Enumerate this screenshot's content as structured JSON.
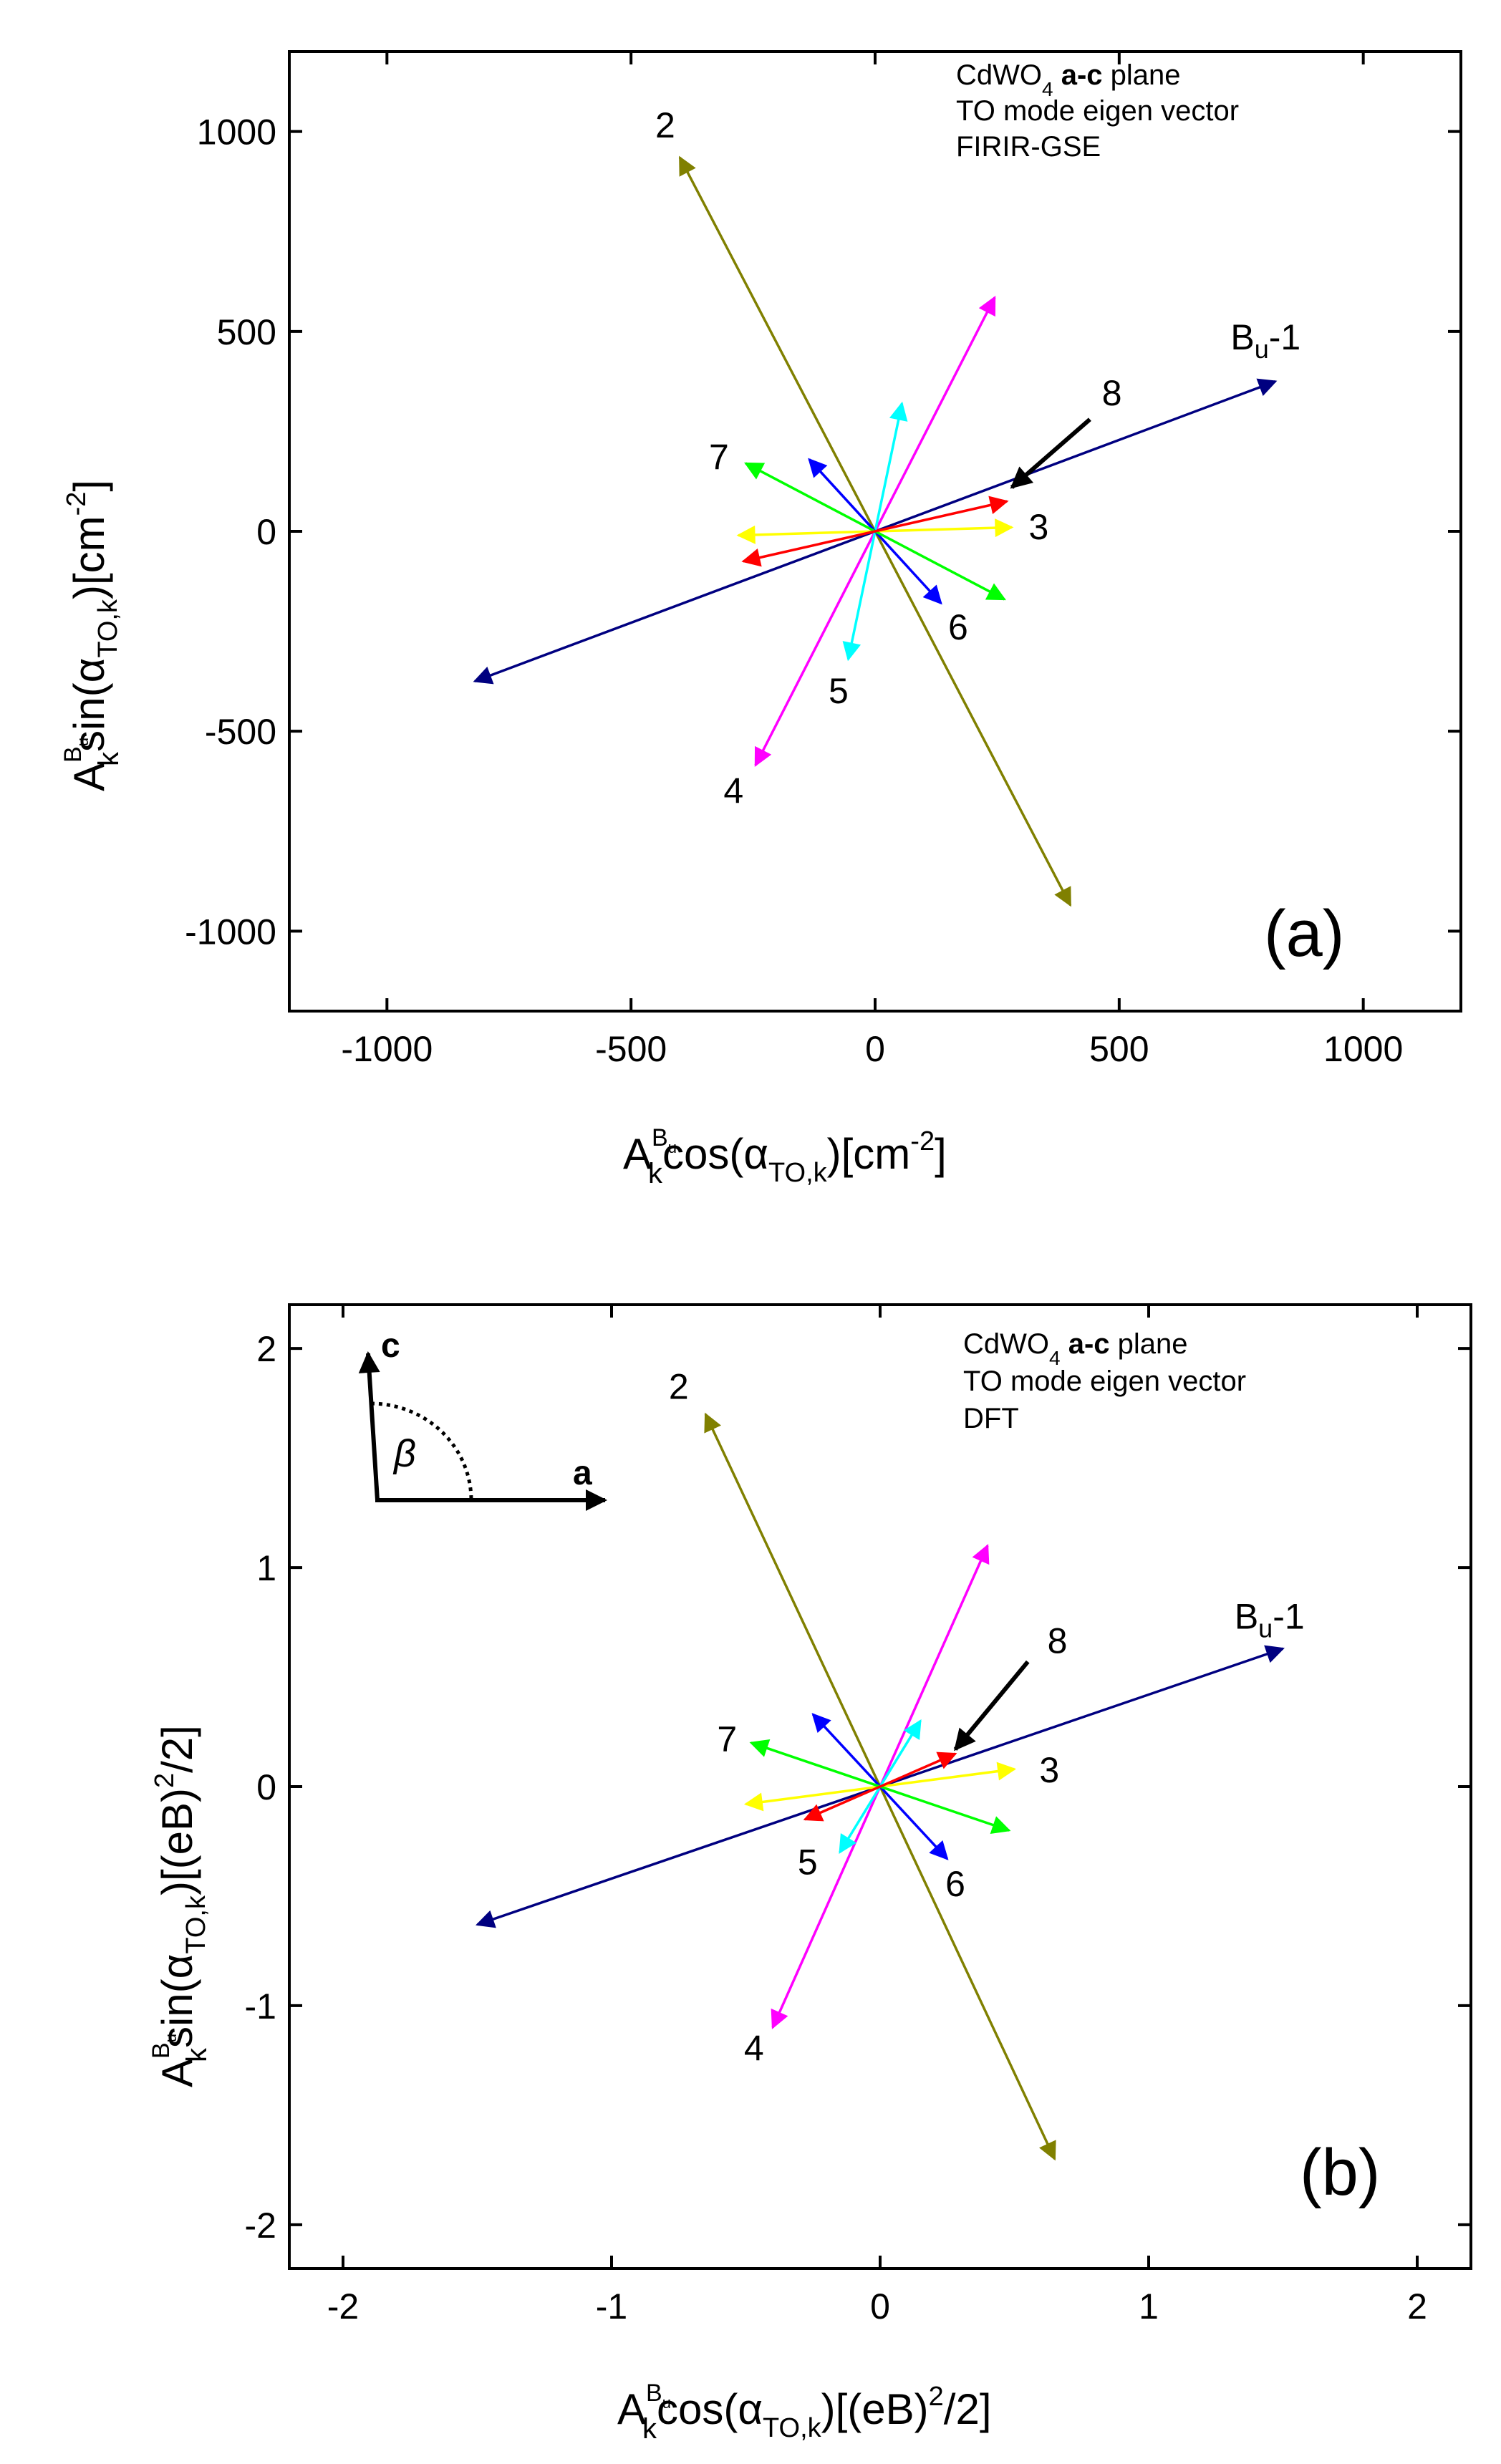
{
  "chart_data": [
    {
      "type": "vector",
      "panel": "(a)",
      "annotation": [
        "CdWO",
        "4",
        "a-c",
        "plane",
        "TO mode eigen vector",
        "FIRIR-GSE"
      ],
      "xlabel": {
        "A": "A",
        "sup": "B",
        "supsub": "u",
        "k": "k",
        "func": "cos(",
        "alpha": "α",
        "alpha_sub": "TO,k",
        "unit": ")[cm",
        "unit_exp": "-2",
        "close": "]"
      },
      "ylabel": {
        "A": "A",
        "sup": "B",
        "supsub": "u",
        "k": "k",
        "func": "sin(",
        "alpha": "α",
        "alpha_sub": "TO,k",
        "unit": ")[cm",
        "unit_exp": "-2",
        "close": "]"
      },
      "xlim": [
        -1200,
        1200
      ],
      "ylim": [
        -1200,
        1200
      ],
      "xticks": [
        -1000,
        -500,
        0,
        500,
        1000
      ],
      "yticks": [
        -1000,
        -500,
        0,
        500,
        1000
      ],
      "xtick_labels": [
        "-1000",
        "-500",
        "0",
        "500",
        "1000"
      ],
      "ytick_labels": [
        "-1000",
        "-500",
        "0",
        "500",
        "1000"
      ],
      "vectors": [
        {
          "mode": "1",
          "label": "B",
          "label_sub": "u",
          "label_suffix": "-1",
          "color": "#000080",
          "dx": 820,
          "dy": 375,
          "two_sided": true,
          "label_at": [
            800,
            455
          ]
        },
        {
          "mode": "2",
          "label": "2",
          "color": "#808000",
          "dx": -400,
          "dy": 935,
          "two_sided": true,
          "label_at": [
            -430,
            985
          ]
        },
        {
          "mode": "3",
          "label": "3",
          "color": "#FFFF00",
          "dx": 280,
          "dy": 10,
          "two_sided": true,
          "label_at": [
            335,
            -20
          ]
        },
        {
          "mode": "4",
          "label": "4",
          "color": "#FF00FF",
          "dx": -245,
          "dy": -585,
          "two_sided": true,
          "label_at": [
            -290,
            -680
          ]
        },
        {
          "mode": "5",
          "label": "5",
          "color": "#00FFFF",
          "dx": -55,
          "dy": -320,
          "two_sided": true,
          "label_at": [
            -75,
            -430
          ]
        },
        {
          "mode": "6",
          "label": "6",
          "color": "#0000FF",
          "dx": 135,
          "dy": -180,
          "two_sided": true,
          "label_at": [
            170,
            -270
          ]
        },
        {
          "mode": "7",
          "label": "7",
          "color": "#00FF00",
          "dx": -265,
          "dy": 170,
          "two_sided": true,
          "label_at": [
            -320,
            155
          ]
        },
        {
          "mode": "8",
          "label": "8",
          "color": "#FF0000",
          "dx": 270,
          "dy": 75,
          "two_sided": true,
          "label_at": [
            485,
            315
          ]
        }
      ],
      "pointer": {
        "from": [
          440,
          280
        ],
        "to": [
          280,
          110
        ],
        "color": "#000000"
      }
    },
    {
      "type": "vector",
      "panel": "(b)",
      "annotation": [
        "CdWO",
        "4",
        "a-c",
        "plane",
        "TO mode eigen vector",
        "DFT"
      ],
      "xlabel": {
        "A": "A",
        "sup": "B",
        "supsub": "u",
        "k": "k",
        "func": "cos(",
        "alpha": "α",
        "alpha_sub": "TO,k",
        "unit": ")[(eB)",
        "unit_exp": "2",
        "close": "/2]"
      },
      "ylabel": {
        "A": "A",
        "sup": "B",
        "supsub": "u",
        "k": "k",
        "func": "sin(",
        "alpha": "α",
        "alpha_sub": "TO,k",
        "unit": ")[(eB)",
        "unit_exp": "2",
        "close": "/2]"
      },
      "xlim": [
        -2.2,
        2.2
      ],
      "ylim": [
        -2.2,
        2.2
      ],
      "xticks": [
        -2,
        -1,
        0,
        1,
        2
      ],
      "yticks": [
        -2,
        -1,
        0,
        1,
        2
      ],
      "xtick_labels": [
        "-2",
        "-1",
        "0",
        "1",
        "2"
      ],
      "ytick_labels": [
        "-2",
        "-1",
        "0",
        "1",
        "2"
      ],
      "vectors": [
        {
          "mode": "1",
          "label": "B",
          "label_sub": "u",
          "label_suffix": "-1",
          "color": "#000080",
          "dx": 1.5,
          "dy": 0.63,
          "two_sided": true,
          "label_at": [
            1.45,
            0.72
          ]
        },
        {
          "mode": "2",
          "label": "2",
          "color": "#808000",
          "dx": -0.65,
          "dy": 1.7,
          "two_sided": true,
          "label_at": [
            -0.75,
            1.77
          ]
        },
        {
          "mode": "3",
          "label": "3",
          "color": "#FFFF00",
          "dx": 0.5,
          "dy": 0.08,
          "two_sided": true,
          "label_at": [
            0.63,
            0.02
          ]
        },
        {
          "mode": "4",
          "label": "4",
          "color": "#FF00FF",
          "dx": -0.4,
          "dy": -1.1,
          "two_sided": true,
          "label_at": [
            -0.47,
            -1.25
          ]
        },
        {
          "mode": "5",
          "label": "5",
          "color": "#00FFFF",
          "dx": -0.15,
          "dy": -0.3,
          "two_sided": true,
          "label_at": [
            -0.27,
            -0.4
          ]
        },
        {
          "mode": "6",
          "label": "6",
          "color": "#0000FF",
          "dx": 0.25,
          "dy": -0.33,
          "two_sided": true,
          "label_at": [
            0.28,
            -0.5
          ]
        },
        {
          "mode": "7",
          "label": "7",
          "color": "#00FF00",
          "dx": -0.48,
          "dy": 0.2,
          "two_sided": true,
          "label_at": [
            -0.57,
            0.16
          ]
        },
        {
          "mode": "8",
          "label": "8",
          "color": "#FF0000",
          "dx": 0.28,
          "dy": 0.15,
          "two_sided": true,
          "label_at": [
            0.66,
            0.61
          ]
        }
      ],
      "pointer": {
        "from": [
          0.55,
          0.57
        ],
        "to": [
          0.28,
          0.17
        ],
        "color": "#000000"
      },
      "inset": {
        "c_label": "c",
        "a_label": "a",
        "angle_label": "β"
      }
    }
  ]
}
